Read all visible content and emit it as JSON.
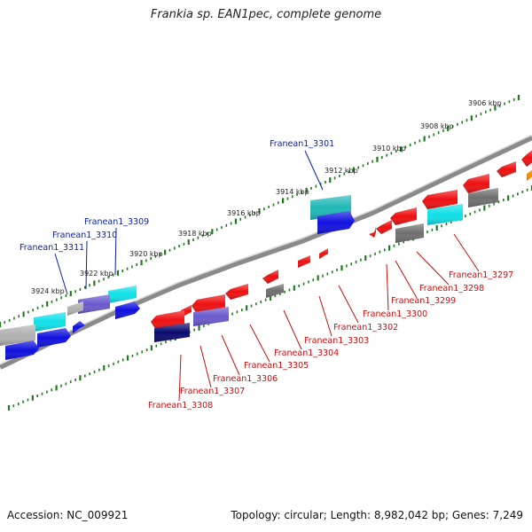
{
  "title": "Frankia sp. EAN1pec, complete genome",
  "footer": {
    "accession": "Accession: NC_009921",
    "summary": "Topology: circular; Length: 8,982,042 bp; Genes: 7,249"
  },
  "scale_labels": [
    "3906 kbp",
    "3908 kbp",
    "3910 kbp",
    "3912 kbp",
    "3914 kbp",
    "3916 kbp",
    "3918 kbp",
    "3920 kbp",
    "3922 kbp",
    "3924 kbp"
  ],
  "genes_plus": [
    "Franean1_3301",
    "Franean1_3309",
    "Franean1_3310",
    "Franean1_3311"
  ],
  "genes_minus": [
    "Franean1_3297",
    "Franean1_3298",
    "Franean1_3299",
    "Franean1_3300",
    "Franean1_3302",
    "Franean1_3303",
    "Franean1_3304",
    "Franean1_3305",
    "Franean1_3306",
    "Franean1_3307",
    "Franean1_3308"
  ],
  "colors": {
    "plus_label": "#0b1f9a",
    "minus_label": "#c21010",
    "tick": "#1f7a1f",
    "backbone": "#8a8a8a",
    "blue": "#1010e0",
    "cyan": "#10e0e8",
    "teal": "#20b8b8",
    "red": "#ee1010",
    "gray": "#6f6f6f",
    "silver": "#b0b0b0",
    "purple": "#6a5acd",
    "navy": "#0a0a70",
    "orange": "#f09000"
  }
}
